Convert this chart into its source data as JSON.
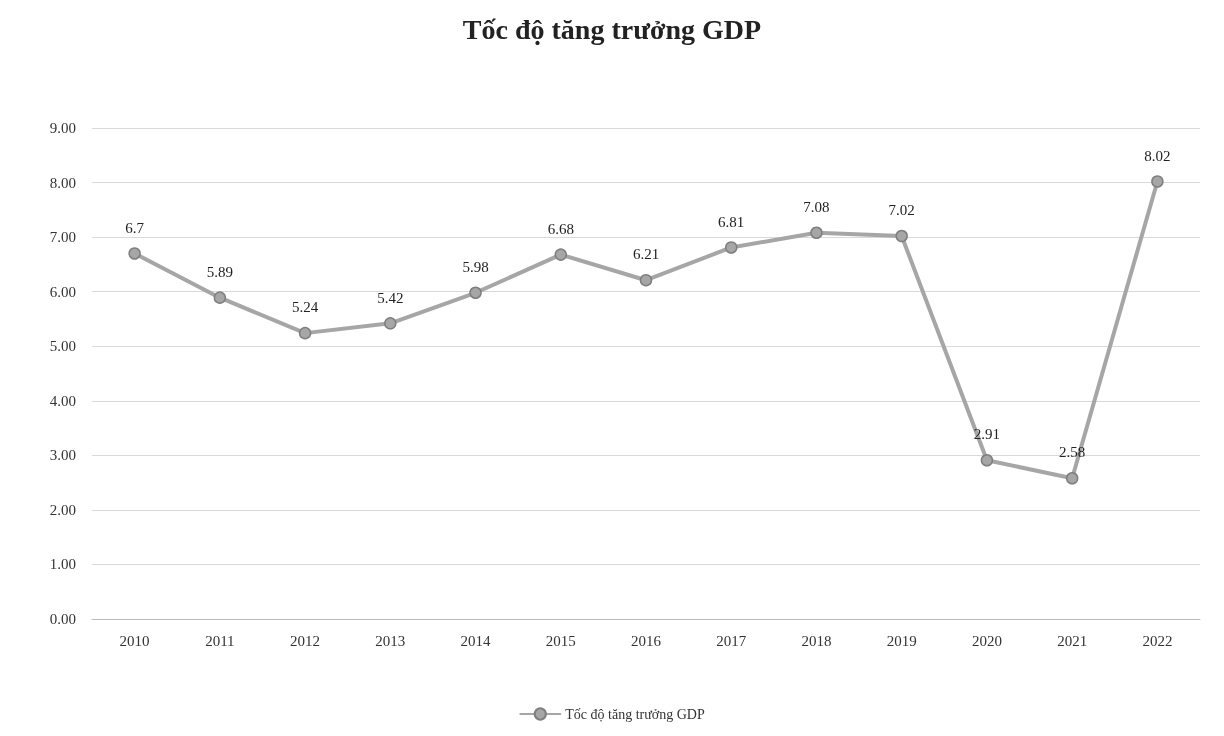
{
  "chart_data": {
    "type": "line",
    "title": "Tốc độ tăng trưởng GDP",
    "categories": [
      "2010",
      "2011",
      "2012",
      "2013",
      "2014",
      "2015",
      "2016",
      "2017",
      "2018",
      "2019",
      "2020",
      "2021",
      "2022"
    ],
    "series": [
      {
        "name": "Tốc độ tăng trưởng GDP",
        "color": "#a6a6a6",
        "values": [
          6.7,
          5.89,
          5.24,
          5.42,
          5.98,
          6.68,
          6.21,
          6.81,
          7.08,
          7.02,
          2.91,
          2.58,
          8.02
        ]
      }
    ],
    "ylim": [
      0,
      9
    ],
    "yticks": [
      {
        "value": 0,
        "label": "0.00"
      },
      {
        "value": 1,
        "label": "1.00"
      },
      {
        "value": 2,
        "label": "2.00"
      },
      {
        "value": 3,
        "label": "3.00"
      },
      {
        "value": 4,
        "label": "4.00"
      },
      {
        "value": 5,
        "label": "5.00"
      },
      {
        "value": 6,
        "label": "6.00"
      },
      {
        "value": 7,
        "label": "7.00"
      },
      {
        "value": 8,
        "label": "8.00"
      },
      {
        "value": 9,
        "label": "9.00"
      }
    ],
    "grid": "y",
    "legend": "bottom",
    "marker": "circle",
    "line_style": "solid",
    "data_labels": true
  }
}
